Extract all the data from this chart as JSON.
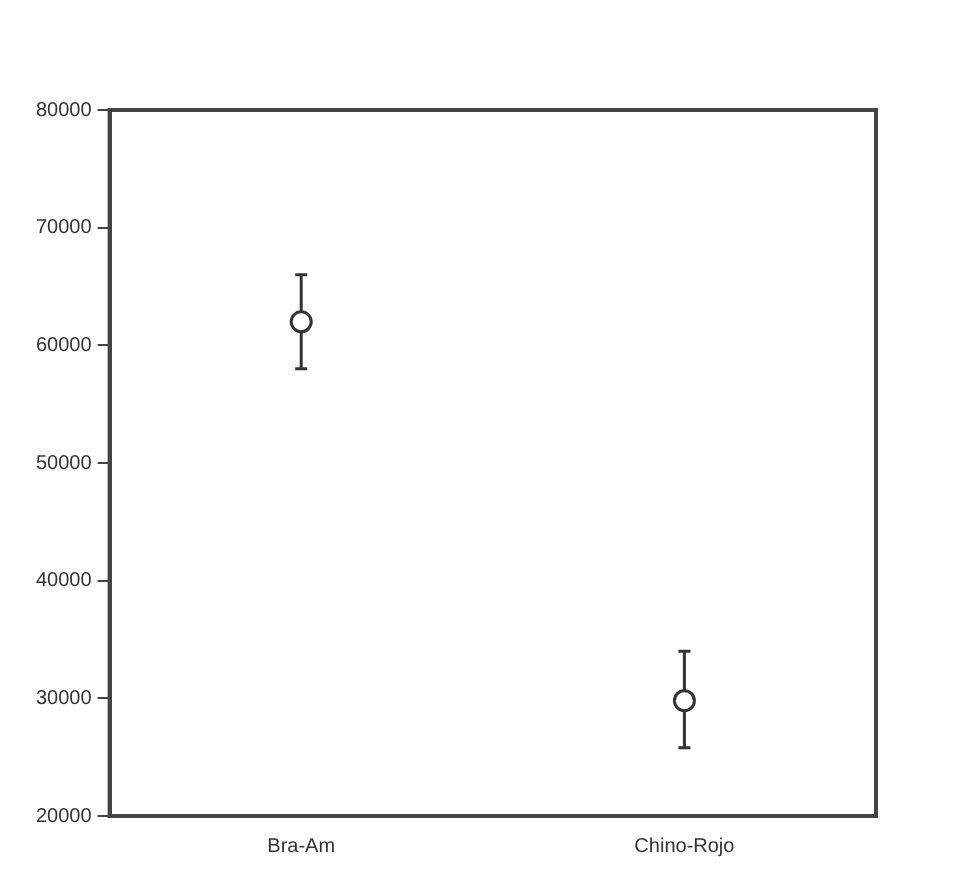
{
  "chart_data": {
    "type": "scatter",
    "categories": [
      "Bra-Am",
      "Chino-Rojo"
    ],
    "values": [
      62000,
      29800
    ],
    "errors": [
      [
        58000,
        66000
      ],
      [
        25800,
        34000
      ]
    ],
    "color": "#333333",
    "ylim": [
      20000,
      80000
    ],
    "yticks": [
      20000,
      30000,
      40000,
      50000,
      60000,
      70000,
      80000
    ],
    "marker": "circle",
    "grid": false,
    "legend": false
  }
}
